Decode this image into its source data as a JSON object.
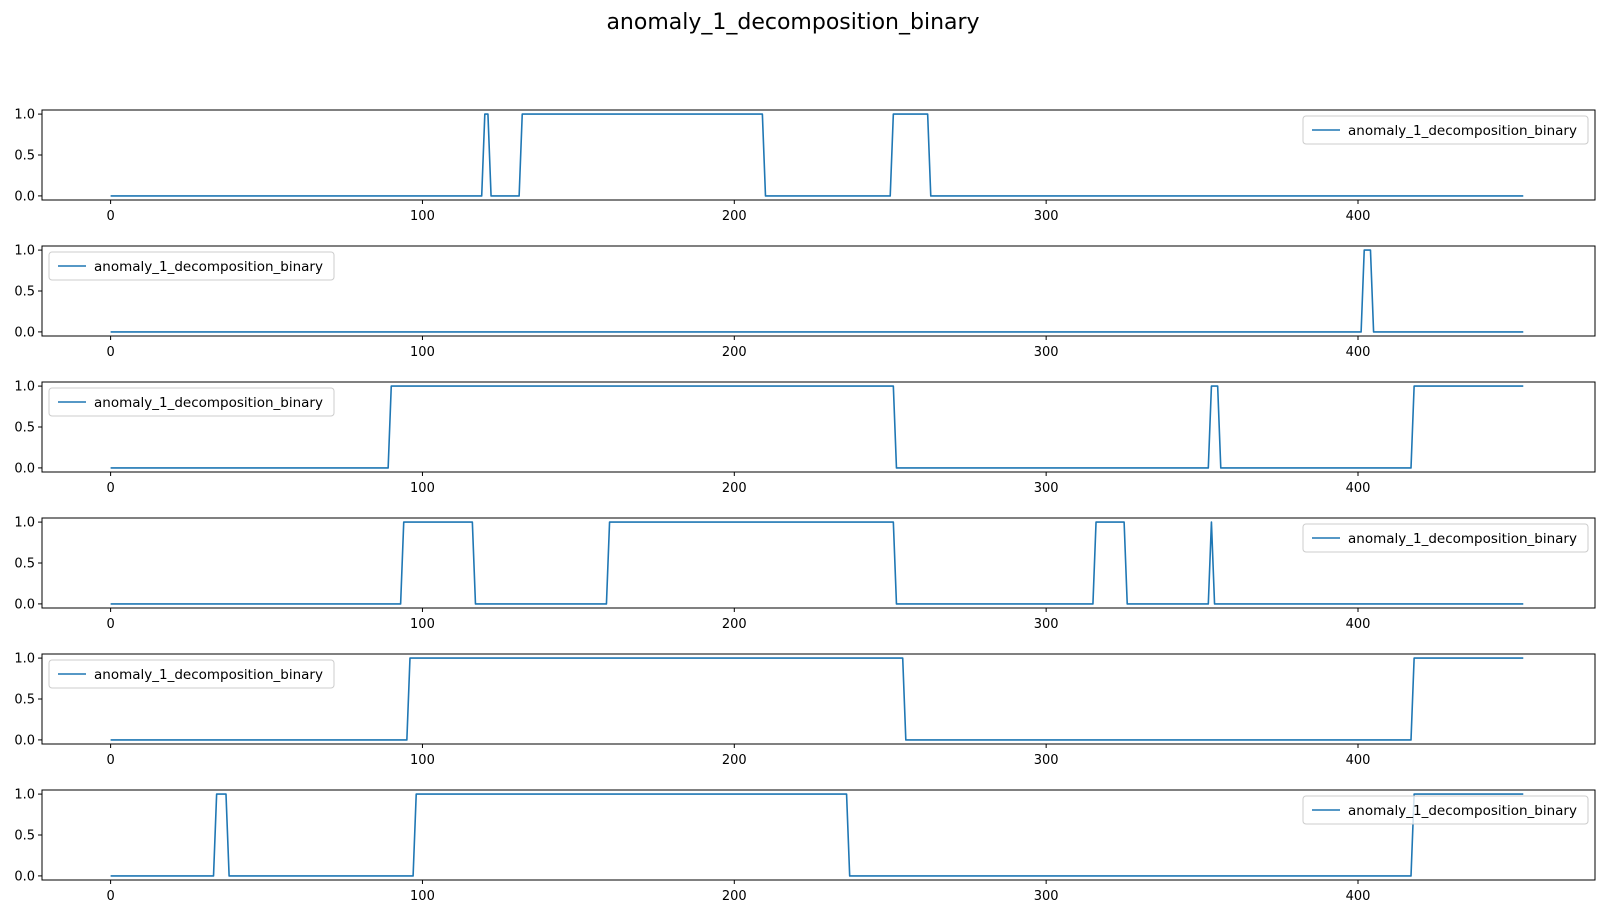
{
  "figure": {
    "title": "anomaly_1_decomposition_binary"
  },
  "colors": {
    "series": "#1f77b4"
  },
  "chart_data": [
    {
      "type": "line",
      "xlim": [
        -22,
        476
      ],
      "ylim": [
        -0.05,
        1.05
      ],
      "x_ticks": [
        0,
        100,
        200,
        300,
        400
      ],
      "x_tick_labels": [
        "0",
        "100",
        "200",
        "300",
        "400"
      ],
      "y_ticks": [
        0.0,
        0.5,
        1.0
      ],
      "y_tick_labels": [
        "0.0",
        "0.5",
        "1.0"
      ],
      "legend_position": "upper right",
      "series": [
        {
          "name": "anomaly_1_decomposition_binary",
          "x": [
            0,
            119,
            120,
            121,
            122,
            131,
            132,
            209,
            210,
            250,
            251,
            262,
            263,
            453
          ],
          "y": [
            0,
            0,
            1,
            1,
            0,
            0,
            1,
            1,
            0,
            0,
            1,
            1,
            0,
            0
          ]
        }
      ]
    },
    {
      "type": "line",
      "xlim": [
        -22,
        476
      ],
      "ylim": [
        -0.05,
        1.05
      ],
      "x_ticks": [
        0,
        100,
        200,
        300,
        400
      ],
      "x_tick_labels": [
        "0",
        "100",
        "200",
        "300",
        "400"
      ],
      "y_ticks": [
        0.0,
        0.5,
        1.0
      ],
      "y_tick_labels": [
        "0.0",
        "0.5",
        "1.0"
      ],
      "legend_position": "upper left",
      "series": [
        {
          "name": "anomaly_1_decomposition_binary",
          "x": [
            0,
            401,
            402,
            404,
            405,
            453
          ],
          "y": [
            0,
            0,
            1,
            1,
            0,
            0
          ]
        }
      ]
    },
    {
      "type": "line",
      "xlim": [
        -22,
        476
      ],
      "ylim": [
        -0.05,
        1.05
      ],
      "x_ticks": [
        0,
        100,
        200,
        300,
        400
      ],
      "x_tick_labels": [
        "0",
        "100",
        "200",
        "300",
        "400"
      ],
      "y_ticks": [
        0.0,
        0.5,
        1.0
      ],
      "y_tick_labels": [
        "0.0",
        "0.5",
        "1.0"
      ],
      "legend_position": "upper left",
      "series": [
        {
          "name": "anomaly_1_decomposition_binary",
          "x": [
            0,
            89,
            90,
            251,
            252,
            352,
            353,
            355,
            356,
            417,
            418,
            453
          ],
          "y": [
            0,
            0,
            1,
            1,
            0,
            0,
            1,
            1,
            0,
            0,
            1,
            1
          ]
        }
      ]
    },
    {
      "type": "line",
      "xlim": [
        -22,
        476
      ],
      "ylim": [
        -0.05,
        1.05
      ],
      "x_ticks": [
        0,
        100,
        200,
        300,
        400
      ],
      "x_tick_labels": [
        "0",
        "100",
        "200",
        "300",
        "400"
      ],
      "y_ticks": [
        0.0,
        0.5,
        1.0
      ],
      "y_tick_labels": [
        "0.0",
        "0.5",
        "1.0"
      ],
      "legend_position": "upper right",
      "series": [
        {
          "name": "anomaly_1_decomposition_binary",
          "x": [
            0,
            93,
            94,
            116,
            117,
            159,
            160,
            251,
            252,
            315,
            316,
            325,
            326,
            352,
            353,
            354,
            453
          ],
          "y": [
            0,
            0,
            1,
            1,
            0,
            0,
            1,
            1,
            0,
            0,
            1,
            1,
            0,
            0,
            1,
            0,
            0
          ]
        }
      ]
    },
    {
      "type": "line",
      "xlim": [
        -22,
        476
      ],
      "ylim": [
        -0.05,
        1.05
      ],
      "x_ticks": [
        0,
        100,
        200,
        300,
        400
      ],
      "x_tick_labels": [
        "0",
        "100",
        "200",
        "300",
        "400"
      ],
      "y_ticks": [
        0.0,
        0.5,
        1.0
      ],
      "y_tick_labels": [
        "0.0",
        "0.5",
        "1.0"
      ],
      "legend_position": "upper left",
      "series": [
        {
          "name": "anomaly_1_decomposition_binary",
          "x": [
            0,
            95,
            96,
            254,
            255,
            417,
            418,
            453
          ],
          "y": [
            0,
            0,
            1,
            1,
            0,
            0,
            1,
            1
          ]
        }
      ]
    },
    {
      "type": "line",
      "xlim": [
        -22,
        476
      ],
      "ylim": [
        -0.05,
        1.05
      ],
      "x_ticks": [
        0,
        100,
        200,
        300,
        400
      ],
      "x_tick_labels": [
        "0",
        "100",
        "200",
        "300",
        "400"
      ],
      "y_ticks": [
        0.0,
        0.5,
        1.0
      ],
      "y_tick_labels": [
        "0.0",
        "0.5",
        "1.0"
      ],
      "legend_position": "upper right",
      "series": [
        {
          "name": "anomaly_1_decomposition_binary",
          "x": [
            0,
            33,
            34,
            37,
            38,
            97,
            98,
            236,
            237,
            417,
            418,
            453
          ],
          "y": [
            0,
            0,
            1,
            1,
            0,
            0,
            1,
            1,
            0,
            0,
            1,
            1
          ]
        }
      ]
    }
  ]
}
